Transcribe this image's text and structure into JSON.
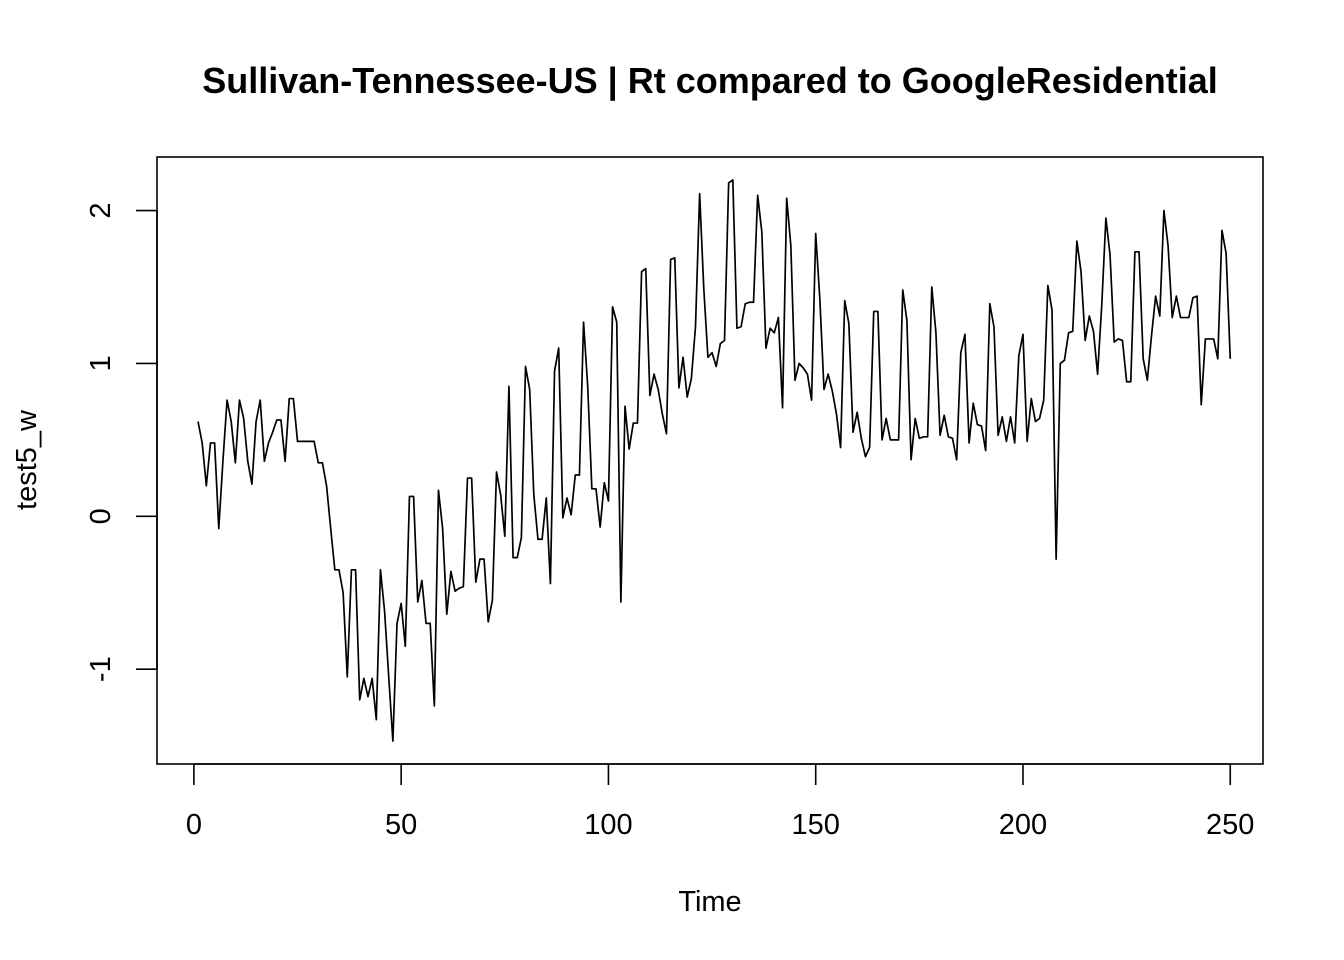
{
  "chart_data": {
    "type": "line",
    "title": "Sullivan-Tennessee-US | Rt compared to GoogleResidential",
    "xlabel": "Time",
    "ylabel": "test5_w",
    "xlim": [
      -8.9,
      257.9
    ],
    "ylim": [
      -1.62,
      2.35
    ],
    "x_ticks": [
      0,
      50,
      100,
      150,
      200,
      250
    ],
    "x_tick_labels": [
      "0",
      "50",
      "100",
      "150",
      "200",
      "250"
    ],
    "y_ticks": [
      -1,
      0,
      1,
      2
    ],
    "y_tick_labels": [
      "-1",
      "0",
      "1",
      "2"
    ],
    "grid": false,
    "legend": "none",
    "series": [
      {
        "color": "#000000",
        "x_start": 1,
        "x_step": 1,
        "values": [
          0.62,
          0.48,
          0.2,
          0.48,
          0.48,
          -0.08,
          0.36,
          0.76,
          0.62,
          0.35,
          0.76,
          0.64,
          0.36,
          0.21,
          0.62,
          0.76,
          0.36,
          0.48,
          0.55,
          0.63,
          0.63,
          0.36,
          0.77,
          0.77,
          0.49,
          0.49,
          0.49,
          0.49,
          0.49,
          0.35,
          0.35,
          0.2,
          -0.08,
          -0.35,
          -0.35,
          -0.5,
          -1.05,
          -0.35,
          -0.35,
          -1.2,
          -1.06,
          -1.18,
          -1.06,
          -1.33,
          -0.35,
          -0.62,
          -1.05,
          -1.47,
          -0.7,
          -0.57,
          -0.85,
          0.13,
          0.13,
          -0.56,
          -0.42,
          -0.7,
          -0.7,
          -1.24,
          0.17,
          -0.08,
          -0.64,
          -0.36,
          -0.49,
          -0.47,
          -0.46,
          0.25,
          0.25,
          -0.43,
          -0.28,
          -0.28,
          -0.69,
          -0.55,
          0.29,
          0.14,
          -0.13,
          0.85,
          -0.27,
          -0.27,
          -0.14,
          0.98,
          0.83,
          0.14,
          -0.15,
          -0.15,
          0.12,
          -0.44,
          0.95,
          1.1,
          -0.01,
          0.12,
          0.01,
          0.27,
          0.27,
          1.27,
          0.85,
          0.18,
          0.18,
          -0.07,
          0.22,
          0.1,
          1.37,
          1.27,
          -0.56,
          0.72,
          0.44,
          0.61,
          0.61,
          1.6,
          1.62,
          0.79,
          0.93,
          0.83,
          0.67,
          0.54,
          1.68,
          1.69,
          0.84,
          1.04,
          0.78,
          0.9,
          1.24,
          2.11,
          1.49,
          1.04,
          1.07,
          0.98,
          1.13,
          1.15,
          2.18,
          2.2,
          1.23,
          1.24,
          1.39,
          1.4,
          1.4,
          2.1,
          1.86,
          1.1,
          1.23,
          1.2,
          1.3,
          0.71,
          2.08,
          1.77,
          0.89,
          1.0,
          0.97,
          0.93,
          0.76,
          1.85,
          1.42,
          0.83,
          0.93,
          0.82,
          0.67,
          0.45,
          1.41,
          1.26,
          0.55,
          0.68,
          0.51,
          0.39,
          0.45,
          1.34,
          1.34,
          0.5,
          0.64,
          0.5,
          0.5,
          0.5,
          1.48,
          1.28,
          0.37,
          0.64,
          0.51,
          0.52,
          0.52,
          1.5,
          1.2,
          0.53,
          0.66,
          0.52,
          0.51,
          0.37,
          1.07,
          1.19,
          0.48,
          0.74,
          0.6,
          0.59,
          0.43,
          1.39,
          1.24,
          0.53,
          0.65,
          0.49,
          0.65,
          0.48,
          1.05,
          1.19,
          0.49,
          0.77,
          0.62,
          0.64,
          0.76,
          1.51,
          1.35,
          -0.28,
          1.0,
          1.02,
          1.2,
          1.21,
          1.8,
          1.6,
          1.15,
          1.31,
          1.21,
          0.93,
          1.38,
          1.95,
          1.71,
          1.14,
          1.16,
          1.15,
          0.88,
          0.88,
          1.73,
          1.73,
          1.03,
          0.89,
          1.18,
          1.44,
          1.31,
          2.0,
          1.77,
          1.3,
          1.44,
          1.3,
          1.3,
          1.3,
          1.43,
          1.44,
          0.73,
          1.16,
          1.16,
          1.16,
          1.03,
          1.87,
          1.72,
          1.03
        ]
      }
    ]
  }
}
